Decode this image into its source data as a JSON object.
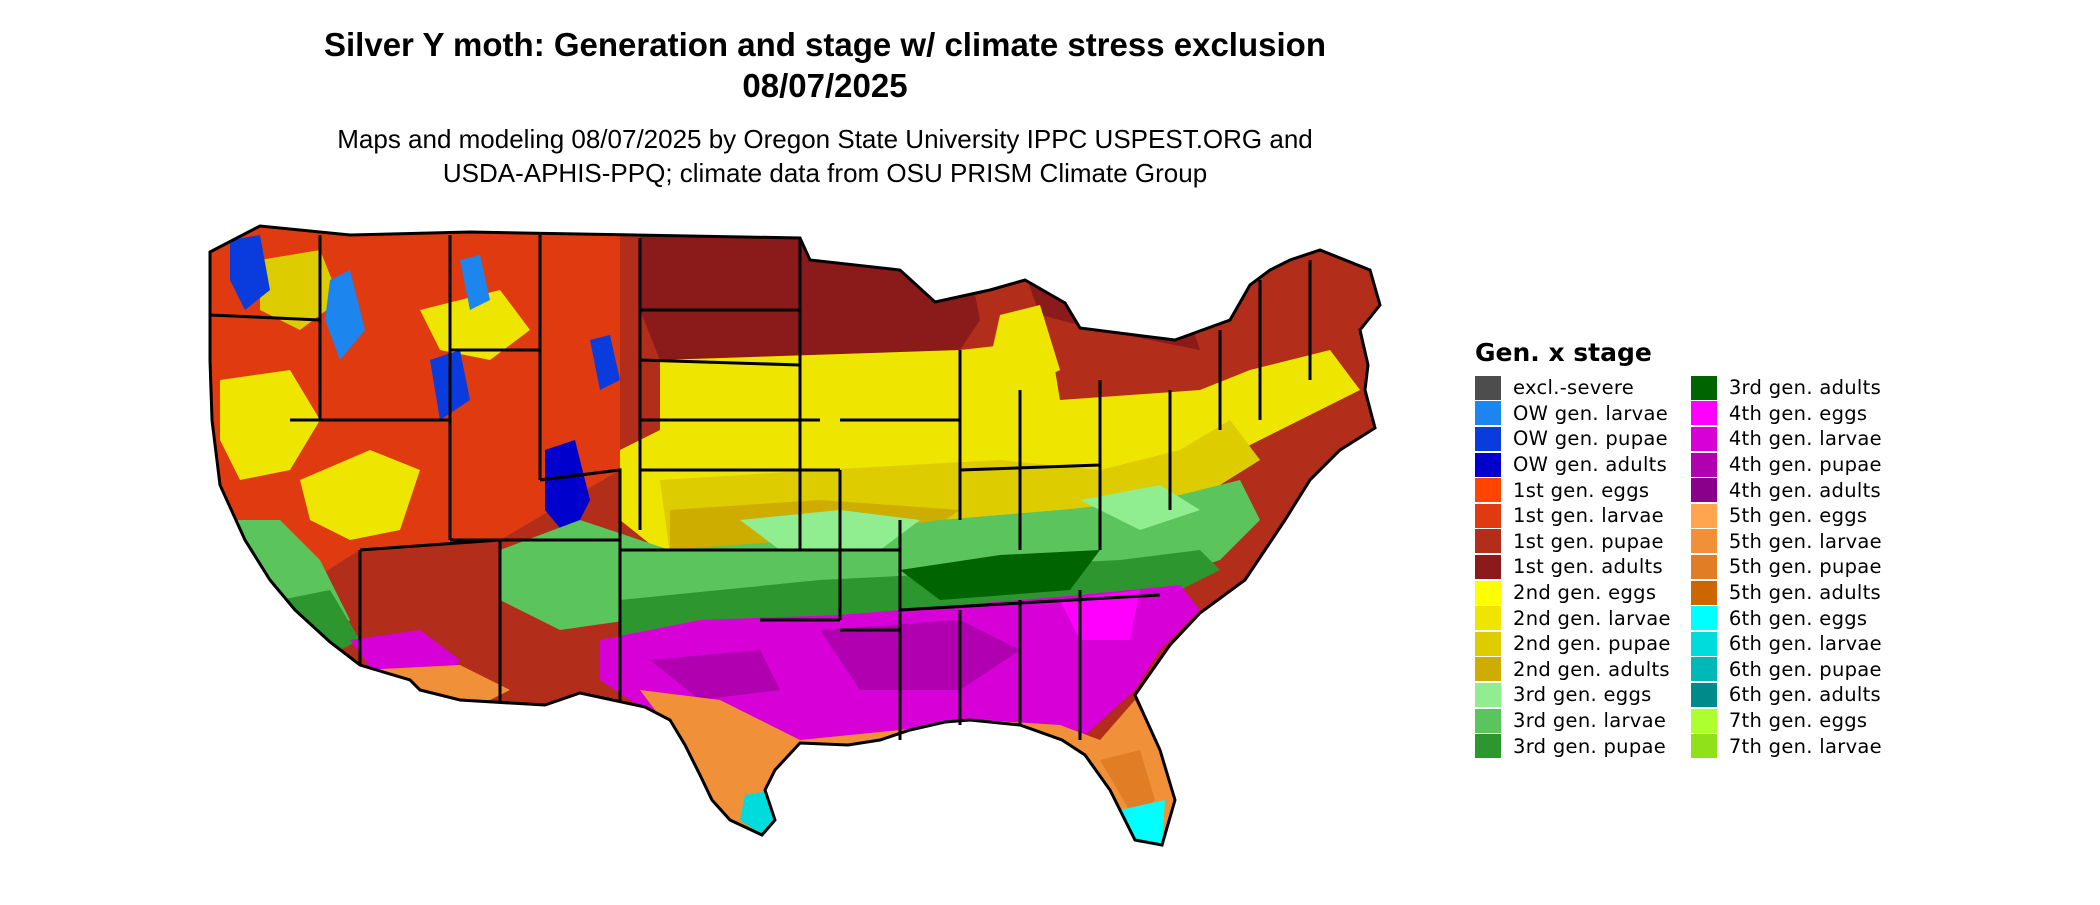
{
  "title_line1": "Silver Y moth: Generation and stage w/ climate stress exclusion",
  "title_line2": "08/07/2025",
  "subtitle_line1": "Maps and modeling 08/07/2025 by Oregon State University IPPC USPEST.ORG and",
  "subtitle_line2": "USDA-APHIS-PPQ; climate data from OSU PRISM Climate Group",
  "legend": {
    "title": "Gen. x stage",
    "items": [
      {
        "label": "excl.-severe",
        "color": "#4d4d4d"
      },
      {
        "label": "OW gen. larvae",
        "color": "#1c86ee"
      },
      {
        "label": "OW gen. pupae",
        "color": "#0a3bdc"
      },
      {
        "label": "OW gen. adults",
        "color": "#0000cd"
      },
      {
        "label": "1st gen. eggs",
        "color": "#ff4500"
      },
      {
        "label": "1st gen. larvae",
        "color": "#df3a10"
      },
      {
        "label": "1st gen. pupae",
        "color": "#b22d1a"
      },
      {
        "label": "1st gen. adults",
        "color": "#8b1a1a"
      },
      {
        "label": "2nd gen. eggs",
        "color": "#ffff00"
      },
      {
        "label": "2nd gen. larvae",
        "color": "#eee600"
      },
      {
        "label": "2nd gen. pupae",
        "color": "#ddcc00"
      },
      {
        "label": "2nd gen. adults",
        "color": "#cdad00"
      },
      {
        "label": "3rd gen. eggs",
        "color": "#90ee90"
      },
      {
        "label": "3rd gen. larvae",
        "color": "#5cc45c"
      },
      {
        "label": "3rd gen. pupae",
        "color": "#2e962e"
      },
      {
        "label": "3rd gen. adults",
        "color": "#006400"
      },
      {
        "label": "4th gen. eggs",
        "color": "#ff00ff"
      },
      {
        "label": "4th gen. larvae",
        "color": "#d700d7"
      },
      {
        "label": "4th gen. pupae",
        "color": "#b000b0"
      },
      {
        "label": "4th gen. adults",
        "color": "#8b008b"
      },
      {
        "label": "5th gen. eggs",
        "color": "#ffa54f"
      },
      {
        "label": "5th gen. larvae",
        "color": "#f0913a"
      },
      {
        "label": "5th gen. pupae",
        "color": "#e07d25"
      },
      {
        "label": "5th gen. adults",
        "color": "#cd6600"
      },
      {
        "label": "6th gen. eggs",
        "color": "#00ffff"
      },
      {
        "label": "6th gen. larvae",
        "color": "#00dcdc"
      },
      {
        "label": "6th gen. pupae",
        "color": "#00b8b8"
      },
      {
        "label": "6th gen. adults",
        "color": "#008b8b"
      },
      {
        "label": "7th gen. eggs",
        "color": "#adff2f"
      },
      {
        "label": "7th gen. larvae",
        "color": "#90e01a"
      }
    ]
  }
}
